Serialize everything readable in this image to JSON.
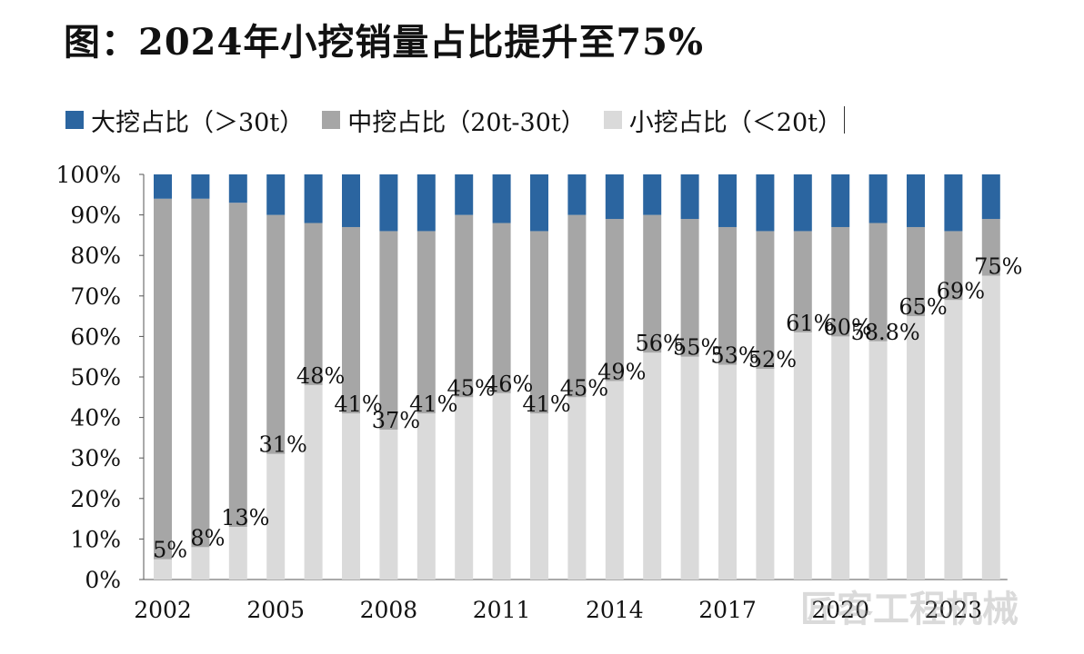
{
  "title": "图：2024年小挖销量占比提升至75%",
  "legend": [
    {
      "label": "大挖占比（＞30t）",
      "color": "#2b65a0"
    },
    {
      "label": "中挖占比（20t-30t）",
      "color": "#a6a6a6"
    },
    {
      "label": "小挖占比（＜20t）",
      "color": "#dadada"
    }
  ],
  "watermark": "匠客工程机械",
  "chart_data": {
    "type": "bar",
    "stacked": true,
    "categories": [
      "2002",
      "2003",
      "2004",
      "2005",
      "2006",
      "2007",
      "2008",
      "2009",
      "2010",
      "2011",
      "2012",
      "2013",
      "2014",
      "2015",
      "2016",
      "2017",
      "2018",
      "2019",
      "2020",
      "2021",
      "2022",
      "2023",
      "2024"
    ],
    "x_tick_labels": [
      "2002",
      "2005",
      "2008",
      "2011",
      "2014",
      "2017",
      "2020",
      "2023"
    ],
    "series": [
      {
        "name": "小挖占比（＜20t）",
        "color": "#dadada",
        "values": [
          5,
          8,
          13,
          31,
          48,
          41,
          37,
          41,
          45,
          46,
          41,
          45,
          49,
          56,
          55,
          53,
          52,
          61,
          60,
          58.8,
          65,
          69,
          75
        ]
      },
      {
        "name": "中挖占比（20t-30t）",
        "color": "#a6a6a6",
        "values": [
          89,
          86,
          80,
          59,
          40,
          46,
          49,
          45,
          45,
          42,
          45,
          45,
          40,
          34,
          34,
          34,
          34,
          25,
          27,
          29.2,
          22,
          17,
          14
        ]
      },
      {
        "name": "大挖占比（＞30t）",
        "color": "#2b65a0",
        "values": [
          6,
          6,
          7,
          10,
          12,
          13,
          14,
          14,
          10,
          12,
          14,
          10,
          11,
          10,
          11,
          13,
          14,
          14,
          13,
          12,
          13,
          14,
          11
        ]
      }
    ],
    "data_labels": [
      "5%",
      "8%",
      "13%",
      "31%",
      "48%",
      "41%",
      "37%",
      "41%",
      "45%",
      "46%",
      "41%",
      "45%",
      "49%",
      "56%",
      "55%",
      "53%",
      "52%",
      "61%",
      "60%",
      "58.8%",
      "65%",
      "69%",
      "75%"
    ],
    "y_tick_labels": [
      "0%",
      "10%",
      "20%",
      "30%",
      "40%",
      "50%",
      "60%",
      "70%",
      "80%",
      "90%",
      "100%"
    ],
    "ylim": [
      0,
      100
    ],
    "grid": false,
    "legend_position": "top"
  }
}
